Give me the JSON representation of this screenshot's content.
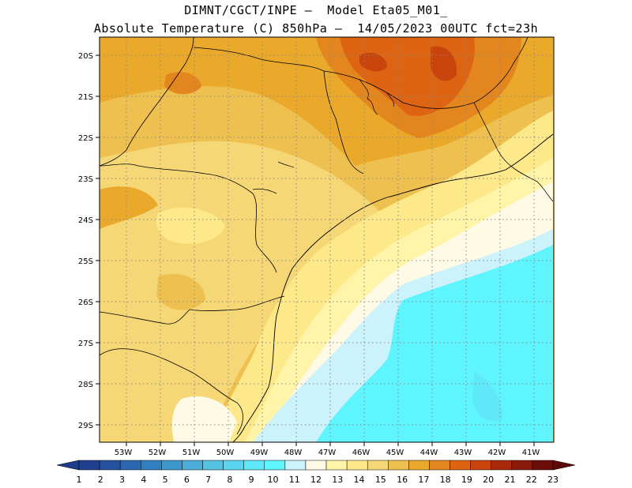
{
  "title_line1": "DIMNT/CGCT/INPE –  Model Eta05_M01_",
  "title_line2": "Absolute Temperature (C) 850hPa –  14/05/2023 00UTC fct=23h",
  "map": {
    "lat_labels": [
      "20S",
      "21S",
      "22S",
      "23S",
      "24S",
      "25S",
      "26S",
      "27S",
      "28S",
      "29S"
    ],
    "lon_labels": [
      "53W",
      "52W",
      "51W",
      "50W",
      "49W",
      "48W",
      "47W",
      "46W",
      "45W",
      "44W",
      "43W",
      "42W",
      "41W"
    ],
    "grid": true,
    "lat_range": [
      -29.4,
      -19.9
    ],
    "lon_range": [
      -53.6,
      -40.8
    ]
  },
  "colorbar": {
    "labels": [
      "1",
      "2",
      "3",
      "4",
      "5",
      "6",
      "7",
      "8",
      "9",
      "10",
      "11",
      "12",
      "13",
      "14",
      "15",
      "16",
      "17",
      "18",
      "19",
      "20",
      "21",
      "22",
      "23"
    ],
    "colors": [
      "#1f3f8f",
      "#25529f",
      "#2b67b0",
      "#3180c0",
      "#3d97cc",
      "#4aaed8",
      "#55c2e3",
      "#5bd5ef",
      "#5ee8f8",
      "#5ff5ff",
      "#ccf2fc",
      "#fffae6",
      "#fff4a8",
      "#fde98a",
      "#f6d775",
      "#eec050",
      "#eaa92a",
      "#e4861e",
      "#dc6413",
      "#c9430c",
      "#a92a0b",
      "#8a1a0a",
      "#6b0e0a"
    ],
    "under_color": "#1e3c8c",
    "over_color": "#5e0a0a"
  }
}
